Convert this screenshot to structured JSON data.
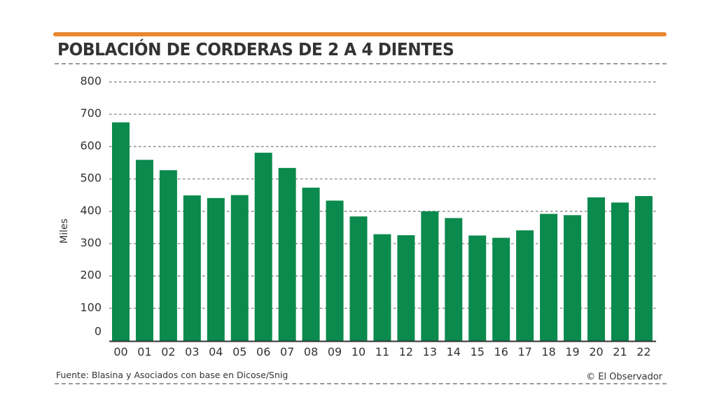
{
  "header": {
    "title": "POBLACIÓN DE CORDERAS DE 2 A 4 DIENTES",
    "accent_color": "#E8872E"
  },
  "footer": {
    "source": "Fuente: Blasina y Asociados con base en Dicose/Snig",
    "credit": "© El Observador"
  },
  "chart_data": {
    "type": "bar",
    "title": "POBLACIÓN DE CORDERAS DE 2 A 4 DIENTES",
    "xlabel": "",
    "ylabel": "Miles",
    "categories": [
      "00",
      "01",
      "02",
      "03",
      "04",
      "05",
      "06",
      "07",
      "08",
      "09",
      "10",
      "11",
      "12",
      "13",
      "14",
      "15",
      "16",
      "17",
      "18",
      "19",
      "20",
      "21",
      "22"
    ],
    "values": [
      675,
      559,
      527,
      449,
      441,
      450,
      581,
      534,
      473,
      433,
      384,
      329,
      326,
      400,
      379,
      325,
      318,
      341,
      392,
      388,
      443,
      427,
      447
    ],
    "ylim": [
      0,
      800
    ],
    "yticks": [
      "0",
      "100",
      "200",
      "300",
      "400",
      "500",
      "600",
      "700",
      "800"
    ],
    "grid": true,
    "legend": "none",
    "bar_color": "#0A8A4C",
    "grid_color": "#8c8c8c",
    "axis_color": "#333333"
  }
}
